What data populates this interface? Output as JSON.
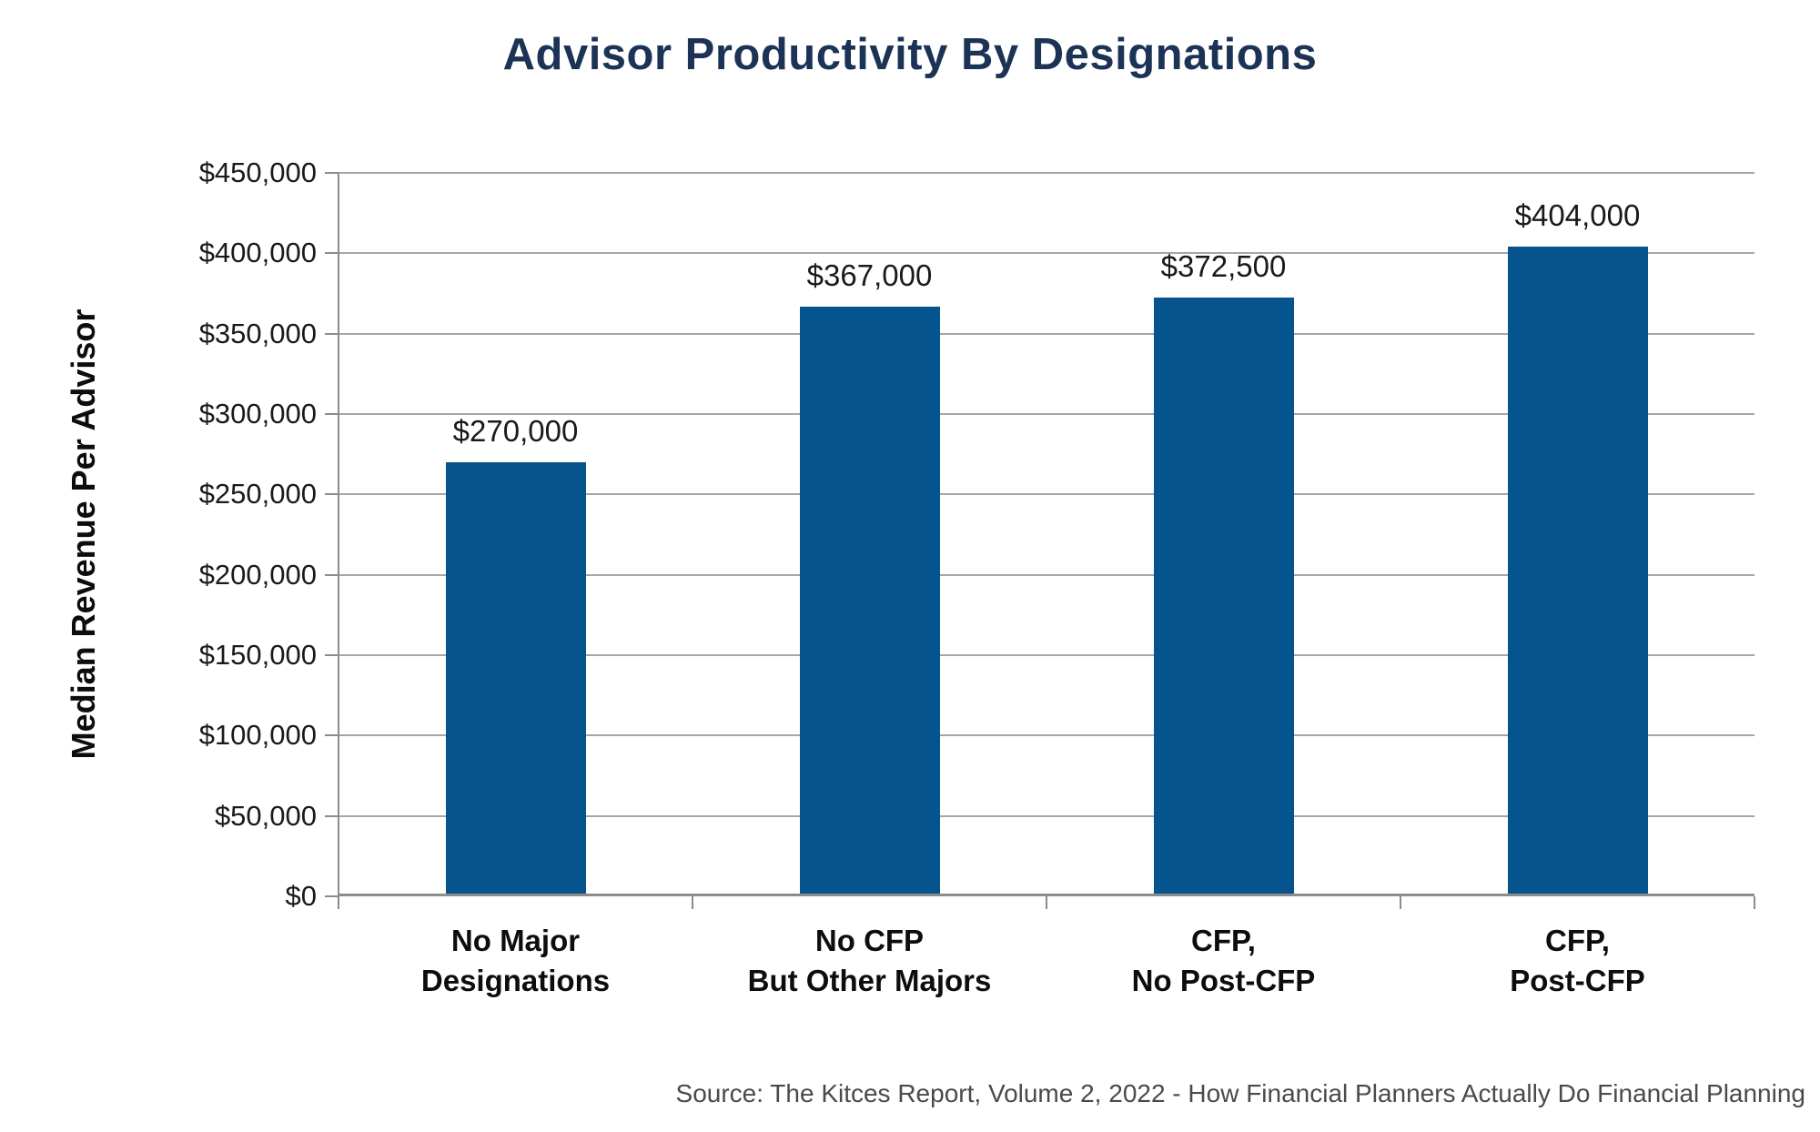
{
  "title": "Advisor Productivity By Designations",
  "source": "Source: The Kitces Report, Volume 2, 2022 - How Financial Planners Actually Do Financial Planning",
  "chart_data": {
    "type": "bar",
    "title": "Advisor Productivity By Designations",
    "categories": [
      "No Major\nDesignations",
      "No CFP\nBut Other Majors",
      "CFP,\nNo Post-CFP",
      "CFP,\nPost-CFP"
    ],
    "values": [
      270000,
      367000,
      372500,
      404000
    ],
    "value_labels": [
      "$270,000",
      "$367,000",
      "$372,500",
      "$404,000"
    ],
    "xlabel": "",
    "ylabel": "Median Revenue Per Advisor",
    "ylim": [
      0,
      450000
    ],
    "ytick_step": 50000,
    "ytick_labels": [
      "$0",
      "$50,000",
      "$100,000",
      "$150,000",
      "$200,000",
      "$250,000",
      "$300,000",
      "$350,000",
      "$400,000",
      "$450,000"
    ],
    "grid": true,
    "legend": false,
    "colors": {
      "bar": "#05548E",
      "gridline": "#A6A6A6",
      "axis": "#8C8C8C",
      "title": "#1C3356",
      "text": "#1A1A1A",
      "source": "#4A4A4A"
    }
  }
}
